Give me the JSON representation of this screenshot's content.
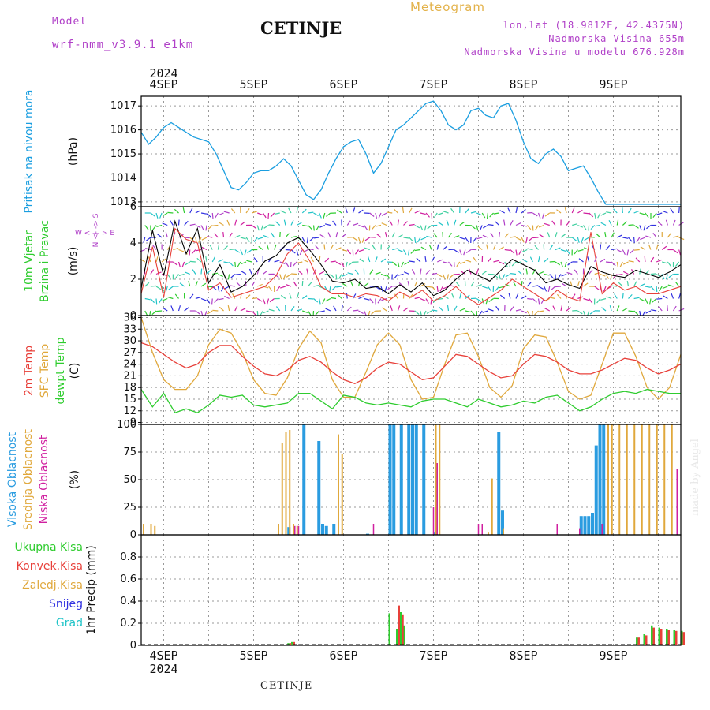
{
  "header": {
    "model_label": "Model",
    "model_name": "wrf-nmm_v3.9.1  e1km",
    "station": "CETINJE",
    "product": "Meteogram",
    "coords": "lon,lat (18.9812E, 42.4375N)",
    "elevation": "Nadmorska Visina 655m",
    "model_elevation": "Nadmorska Visina u modelu 676.928m",
    "year": "2024",
    "footer_station": "CETINJE",
    "watermark": "made by Angel"
  },
  "colors": {
    "pressure": "#1a9ee0",
    "red": "#e8403a",
    "orange": "#e0a83c",
    "green": "#2ecc2e",
    "cyan": "#22c4c8",
    "blue": "#3030e0",
    "magenta": "#d020a0",
    "purple": "#b040c8",
    "highblue": "#2a9ce0",
    "grid": "#999999"
  },
  "chart_data": [
    {
      "type": "line",
      "panel": "pressure",
      "ylabel": "Pritisak na nivou mora",
      "unit": "(hPa)",
      "ylim": [
        1012.8,
        1017.4
      ],
      "yticks": [
        1013,
        1014,
        1015,
        1016,
        1017
      ],
      "x_categories": [
        "4SEP",
        "5SEP",
        "6SEP",
        "7SEP",
        "8SEP",
        "9SEP"
      ],
      "x_start_hours": -6,
      "x_end_hours": 138,
      "series": [
        {
          "name": "",
          "x_hours": [
            -6,
            -4,
            -2,
            0,
            2,
            4,
            6,
            8,
            10,
            12,
            14,
            16,
            18,
            20,
            22,
            24,
            26,
            28,
            30,
            32,
            34,
            36,
            38,
            40,
            42,
            44,
            46,
            48,
            50,
            52,
            54,
            56,
            58,
            60,
            62,
            64,
            66,
            68,
            70,
            72,
            74,
            76,
            78,
            80,
            82,
            84,
            86,
            88,
            90,
            92,
            94,
            96,
            98,
            100,
            102,
            104,
            106,
            108,
            110,
            112,
            114,
            116,
            118,
            120,
            122,
            124,
            126,
            128,
            130,
            132,
            134,
            136,
            138
          ],
          "values": [
            1015.9,
            1015.4,
            1015.7,
            1016.1,
            1016.3,
            1016.1,
            1015.9,
            1015.7,
            1015.6,
            1015.5,
            1015.0,
            1014.3,
            1013.6,
            1013.5,
            1013.8,
            1014.2,
            1014.3,
            1014.3,
            1014.5,
            1014.8,
            1014.5,
            1013.9,
            1013.3,
            1013.1,
            1013.5,
            1014.2,
            1014.8,
            1015.3,
            1015.5,
            1015.6,
            1015.0,
            1014.2,
            1014.6,
            1015.3,
            1016.0,
            1016.2,
            1016.5,
            1016.8,
            1017.1,
            1017.2,
            1016.8,
            1016.2,
            1016.0,
            1016.2,
            1016.8,
            1016.9,
            1016.6,
            1016.5,
            1017.0,
            1017.1,
            1016.4,
            1015.5,
            1014.8,
            1014.6,
            1015.0,
            1015.2,
            1014.9,
            1014.3,
            1014.4,
            1014.5,
            1014.0,
            1013.4,
            1012.9,
            1012.9,
            1012.9,
            1012.9,
            1012.9,
            1012.9,
            1012.9,
            1012.9,
            1012.9,
            1012.9,
            1012.9
          ]
        }
      ]
    },
    {
      "type": "line",
      "panel": "wind",
      "ylabel": "10m Vjetar Brzina i Pravac",
      "unit": "(m/s)",
      "compass": "N S W E",
      "ylim": [
        0,
        6
      ],
      "yticks": [
        0,
        2,
        4,
        6
      ],
      "series": [
        {
          "name": "",
          "x_hours": [
            -6,
            -3,
            0,
            3,
            6,
            9,
            12,
            15,
            18,
            21,
            24,
            27,
            30,
            33,
            36,
            39,
            42,
            45,
            48,
            51,
            54,
            57,
            60,
            63,
            66,
            69,
            72,
            75,
            78,
            81,
            84,
            87,
            90,
            93,
            96,
            99,
            102,
            105,
            108,
            111,
            114,
            117,
            120,
            123,
            126,
            129,
            132,
            135,
            138
          ],
          "values": [
            1.5,
            4.7,
            2.2,
            5.2,
            3.4,
            4.8,
            1.8,
            2.8,
            1.3,
            1.6,
            2.2,
            3.0,
            3.3,
            4.0,
            4.3,
            3.6,
            2.8,
            1.9,
            1.8,
            2.0,
            1.5,
            1.6,
            1.2,
            1.7,
            1.3,
            1.8,
            1.1,
            1.4,
            2.0,
            2.5,
            2.2,
            1.9,
            2.5,
            3.1,
            2.8,
            2.5,
            1.8,
            2.0,
            1.7,
            1.5,
            2.7,
            2.4,
            2.2,
            2.1,
            2.5,
            2.3,
            2.1,
            2.4,
            2.8
          ]
        },
        {
          "name": "",
          "x_hours": [
            -6,
            -3,
            0,
            3,
            6,
            9,
            12,
            15,
            18,
            21,
            24,
            27,
            30,
            33,
            36,
            39,
            42,
            45,
            48,
            51,
            54,
            57,
            60,
            63,
            66,
            69,
            72,
            75,
            78,
            81,
            84,
            87,
            90,
            93,
            96,
            99,
            102,
            105,
            108,
            111,
            114,
            117,
            120,
            123,
            126,
            129,
            132,
            135,
            138
          ],
          "values": [
            1.2,
            3.8,
            1.0,
            4.8,
            4.2,
            4.0,
            1.4,
            1.8,
            1.0,
            1.2,
            1.4,
            1.6,
            2.2,
            3.4,
            4.0,
            3.0,
            1.6,
            1.2,
            1.2,
            1.0,
            1.2,
            1.1,
            0.8,
            1.3,
            1.0,
            1.4,
            0.8,
            1.1,
            1.6,
            1.0,
            0.6,
            1.0,
            1.4,
            2.0,
            1.6,
            1.2,
            0.8,
            1.4,
            1.0,
            0.8,
            4.6,
            1.2,
            1.8,
            1.4,
            1.6,
            1.2,
            1.2,
            1.4,
            1.6
          ]
        }
      ]
    },
    {
      "type": "line",
      "panel": "temperature",
      "ylabel": "2m Temp / SFC Temp / dewpt Temp",
      "unit": "(C)",
      "ylim": [
        8.5,
        36.5
      ],
      "yticks": [
        9,
        12,
        15,
        18,
        21,
        24,
        27,
        30,
        33,
        36
      ],
      "series": [
        {
          "name": "2m Temp",
          "x_hours": [
            -6,
            -3,
            0,
            3,
            6,
            9,
            12,
            15,
            18,
            21,
            24,
            27,
            30,
            33,
            36,
            39,
            42,
            45,
            48,
            51,
            54,
            57,
            60,
            63,
            66,
            69,
            72,
            75,
            78,
            81,
            84,
            87,
            90,
            93,
            96,
            99,
            102,
            105,
            108,
            111,
            114,
            117,
            120,
            123,
            126,
            129,
            132,
            135,
            138
          ],
          "values": [
            29.5,
            28.5,
            26.5,
            24.5,
            23.0,
            24.0,
            27.0,
            28.8,
            28.8,
            26.0,
            23.5,
            21.5,
            21.0,
            22.5,
            25.0,
            26.0,
            24.5,
            22.0,
            20.0,
            19.0,
            20.5,
            23.0,
            24.5,
            24.0,
            22.0,
            20.0,
            20.5,
            23.5,
            26.5,
            26.0,
            24.0,
            22.0,
            20.5,
            21.0,
            24.0,
            26.5,
            26.0,
            24.5,
            22.5,
            21.5,
            21.5,
            22.5,
            24.0,
            25.5,
            25.0,
            23.0,
            21.5,
            22.5,
            24.0
          ]
        },
        {
          "name": "SFC Temp",
          "x_hours": [
            -6,
            -3,
            0,
            3,
            6,
            9,
            12,
            15,
            18,
            21,
            24,
            27,
            30,
            33,
            36,
            39,
            42,
            45,
            48,
            51,
            54,
            57,
            60,
            63,
            66,
            69,
            72,
            75,
            78,
            81,
            84,
            87,
            90,
            93,
            96,
            99,
            102,
            105,
            108,
            111,
            114,
            117,
            120,
            123,
            126,
            129,
            132,
            135,
            138
          ],
          "values": [
            36.0,
            27.0,
            20.0,
            17.5,
            17.5,
            21.0,
            29.0,
            33.0,
            32.0,
            27.0,
            20.0,
            16.5,
            16.0,
            20.5,
            28.0,
            32.5,
            29.5,
            20.0,
            15.5,
            15.5,
            22.0,
            29.0,
            32.0,
            29.0,
            20.0,
            15.0,
            15.5,
            24.0,
            31.5,
            32.0,
            26.0,
            18.0,
            15.5,
            18.5,
            28.0,
            31.5,
            31.0,
            24.5,
            17.0,
            15.0,
            16.0,
            24.0,
            32.0,
            32.0,
            26.0,
            18.0,
            15.0,
            18.0,
            26.5
          ]
        },
        {
          "name": "dewpt Temp",
          "x_hours": [
            -6,
            -3,
            0,
            3,
            6,
            9,
            12,
            15,
            18,
            21,
            24,
            27,
            30,
            33,
            36,
            39,
            42,
            45,
            48,
            51,
            54,
            57,
            60,
            63,
            66,
            69,
            72,
            75,
            78,
            81,
            84,
            87,
            90,
            93,
            96,
            99,
            102,
            105,
            108,
            111,
            114,
            117,
            120,
            123,
            126,
            129,
            132,
            135,
            138
          ],
          "values": [
            17.5,
            13.0,
            16.5,
            11.5,
            12.5,
            11.5,
            13.5,
            16.0,
            15.5,
            16.0,
            13.5,
            13.0,
            13.5,
            14.0,
            16.5,
            16.5,
            14.5,
            12.5,
            16.0,
            15.5,
            14.0,
            13.5,
            14.0,
            13.5,
            13.0,
            14.5,
            15.0,
            15.0,
            14.0,
            13.0,
            15.0,
            14.0,
            13.0,
            13.5,
            14.5,
            14.0,
            15.5,
            16.0,
            14.0,
            12.0,
            13.0,
            15.0,
            16.5,
            17.0,
            16.5,
            17.5,
            17.0,
            16.5,
            16.5
          ]
        }
      ]
    },
    {
      "type": "bar",
      "panel": "cloud",
      "ylabel": "Visoka Oblacnost / Srednja Oblacnost / Niska Oblacnost",
      "unit": "(%)",
      "ylim": [
        0,
        100
      ],
      "yticks": [
        0,
        25,
        50,
        75,
        100
      ],
      "series": [
        {
          "name": "Visoka Oblacnost",
          "x_hours": [
            33,
            37,
            41,
            42,
            43,
            45,
            54,
            60,
            61,
            63,
            65,
            66,
            67,
            69,
            72,
            89,
            90,
            111,
            112,
            113,
            114,
            115,
            116,
            117
          ],
          "values": [
            7,
            100,
            85,
            10,
            8,
            10,
            1,
            100,
            100,
            100,
            100,
            100,
            100,
            100,
            2,
            93,
            22,
            17,
            17,
            17,
            20,
            81,
            100,
            100
          ]
        },
        {
          "name": "Srednja Oblacnost",
          "x_hours": [
            -6,
            -4,
            -3,
            30,
            31,
            32,
            33,
            34,
            35,
            46,
            47,
            72,
            73,
            86,
            87,
            90,
            118,
            119,
            121,
            123,
            125,
            127,
            129,
            131,
            133,
            135
          ],
          "values": [
            10,
            10,
            8,
            10,
            83,
            93,
            95,
            10,
            8,
            91,
            73,
            100,
            100,
            2,
            51,
            6,
            100,
            100,
            100,
            100,
            100,
            100,
            100,
            100,
            100,
            100
          ]
        },
        {
          "name": "Niska Oblacnost",
          "x_hours": [
            34,
            35,
            55,
            71,
            72,
            83,
            84,
            104,
            110,
            116,
            136
          ],
          "values": [
            8,
            8,
            10,
            25,
            65,
            10,
            10,
            10,
            6,
            10,
            60
          ]
        }
      ]
    },
    {
      "type": "bar",
      "panel": "precip",
      "ylabel": "1hr Precip (mm)",
      "ylim": [
        0,
        1.0
      ],
      "yticks": [
        0,
        0.2,
        0.4,
        0.6,
        0.8
      ],
      "legend": [
        "Ukupna Kisa",
        "Konvek.Kisa",
        "Zaledj.Kisa",
        "Snijeg",
        "Grad"
      ],
      "series": [
        {
          "name": "Ukupna Kisa",
          "x_hours": [
            33,
            34,
            60,
            63,
            64,
            62,
            126,
            128,
            130,
            132,
            134,
            136,
            138
          ],
          "values": [
            0.02,
            0.03,
            0.29,
            0.3,
            0.18,
            0.15,
            0.07,
            0.1,
            0.18,
            0.16,
            0.15,
            0.14,
            0.13
          ]
        },
        {
          "name": "Konvek.Kisa",
          "x_hours": [
            33,
            34,
            62,
            63,
            126,
            128,
            130,
            132,
            134,
            136,
            138
          ],
          "values": [
            0.02,
            0.03,
            0.36,
            0.28,
            0.07,
            0.09,
            0.16,
            0.15,
            0.14,
            0.13,
            0.12
          ]
        }
      ]
    }
  ]
}
